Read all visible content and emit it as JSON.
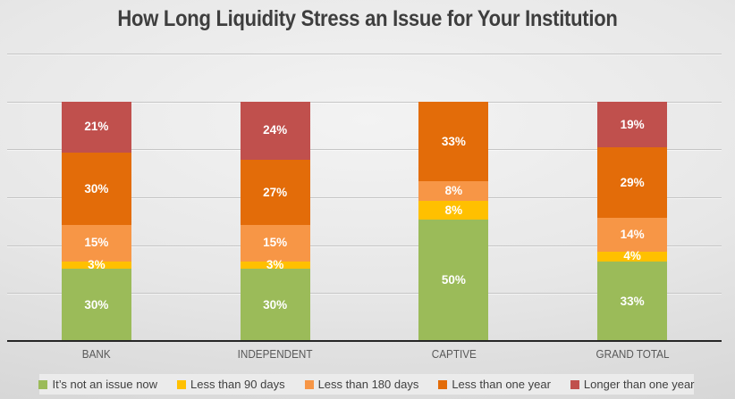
{
  "title": "How Long Liquidity Stress an Issue for Your Institution",
  "chart_data": {
    "type": "bar",
    "stacked": true,
    "title": "How Long Liquidity Stress an Issue for Your Institution",
    "categories": [
      "BANK",
      "INDEPENDENT",
      "CAPTIVE",
      "GRAND TOTAL"
    ],
    "series": [
      {
        "name": "It’s not an issue now",
        "color": "#9BBB59",
        "values": [
          30,
          30,
          50,
          33
        ]
      },
      {
        "name": "Less than 90 days",
        "color": "#FFC000",
        "values": [
          3,
          3,
          8,
          4
        ]
      },
      {
        "name": "Less than 180 days",
        "color": "#F79646",
        "values": [
          15,
          15,
          8,
          14
        ]
      },
      {
        "name": "Less than one year",
        "color": "#E36C09",
        "values": [
          30,
          27,
          33,
          29
        ]
      },
      {
        "name": "Longer than one year",
        "color": "#C0504D",
        "values": [
          21,
          24,
          0,
          19
        ]
      }
    ],
    "value_label_format": "percent",
    "xlabel": "",
    "ylabel": "",
    "ylim": [
      0,
      120
    ],
    "gridline_step": 20,
    "grid": true,
    "y_tick_labels_visible": false,
    "legend_position": "bottom",
    "colors": {
      "axis_line": "#262626",
      "gridline": "#C5C5C5",
      "title_text": "#3E3E3E",
      "category_text": "#595959",
      "legend_bg": "#EBEBEB",
      "value_label_text": "#FFFFFF"
    }
  }
}
